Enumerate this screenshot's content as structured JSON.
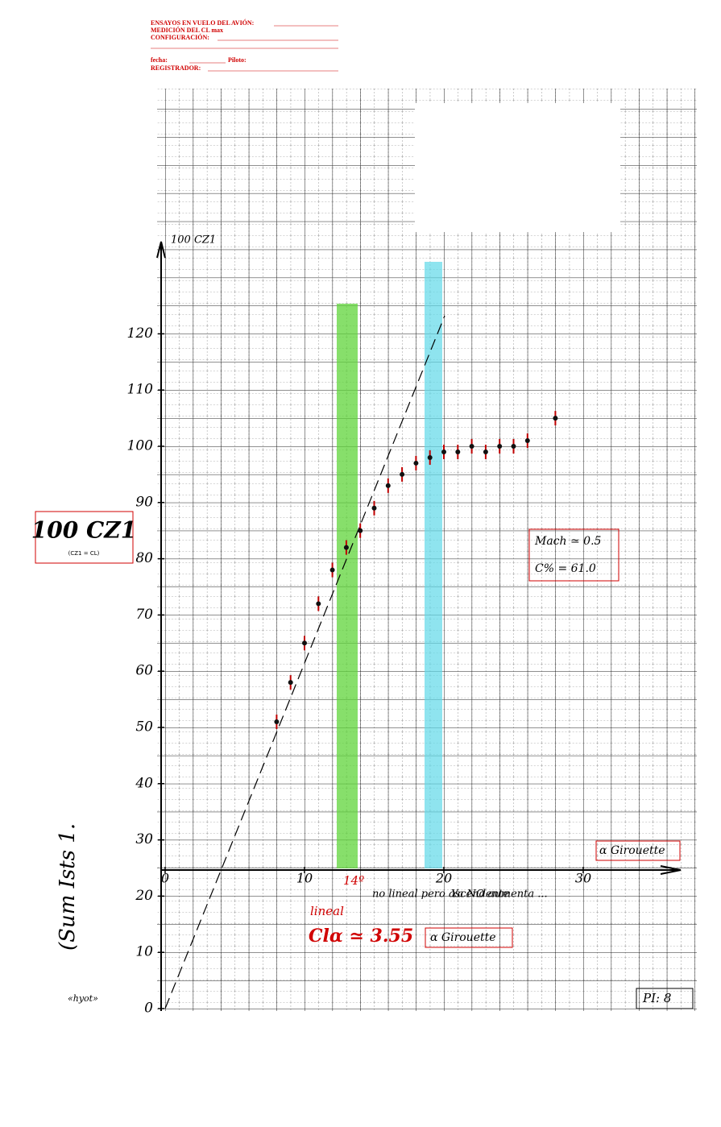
{
  "header": {
    "lines": [
      "ENSAYOS EN VUELO DEL AVIÓN:",
      "MEDICIÓN DEL CL max",
      "CONFIGURACIÓN:",
      "fecha:",
      "Piloto:",
      "REGISTRADOR:"
    ]
  },
  "chart_data": {
    "type": "scatter",
    "y_label": "100 CZ1",
    "x_label": "α Girouette",
    "x": [
      8,
      9,
      10,
      11,
      12,
      13,
      14,
      15,
      16,
      17,
      18,
      19,
      20,
      21,
      22,
      23,
      24,
      25,
      26,
      28
    ],
    "values": [
      51,
      58,
      65,
      72,
      78,
      82,
      85,
      89,
      93,
      95,
      97,
      98,
      99,
      99,
      100,
      99,
      100,
      100,
      101,
      105
    ],
    "color": "#c00000",
    "xlim": [
      0,
      38
    ],
    "ylim": [
      0,
      136
    ],
    "xticks": [
      0,
      10,
      20,
      30
    ],
    "yticks": [
      0,
      10,
      20,
      30,
      40,
      50,
      60,
      70,
      80,
      90,
      100,
      110,
      120
    ]
  },
  "annotations": {
    "box_title": "100 CZ1",
    "box_note": "(CZ1 = CL)",
    "mach": "Mach ≃ 0.5",
    "cg": "C% = 61.0",
    "angle": "14º",
    "linear": "lineal",
    "nonlinear": "no lineal pero ascendente",
    "no_increase": "Ya NO aumenta ...",
    "slope": "Clα ≃ 3.55",
    "girouette": "α Girouette",
    "plate": "PI: 8",
    "side": "(Sum Ists 1.",
    "hyot": "«hyot»"
  }
}
